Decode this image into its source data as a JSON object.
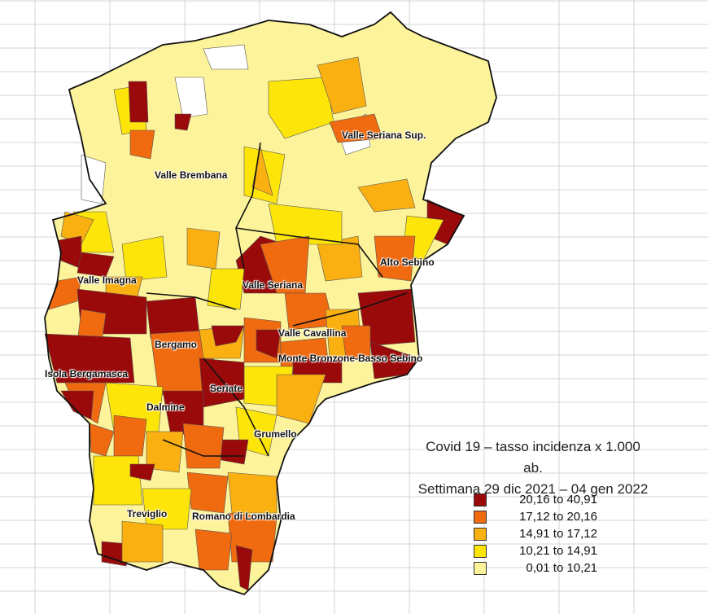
{
  "title": {
    "line1": "Covid 19 – tasso incidenza x 1.000",
    "line2": "ab.",
    "line3": "Settimana 29 dic 2021 – 04 gen 2022"
  },
  "legend": [
    {
      "label": "20,16 to 40,91",
      "color": "#9b0a0a"
    },
    {
      "label": "17,12 to 20,16",
      "color": "#f06a10"
    },
    {
      "label": "14,91 to 17,12",
      "color": "#fbb012"
    },
    {
      "label": "10,21 to 14,91",
      "color": "#fde50a"
    },
    {
      "label": "0,01 to 10,21",
      "color": "#fdf39a"
    }
  ],
  "districts": [
    "Valle Seriana Sup.",
    "Valle Brembana",
    "Alto Sebino",
    "Valle Imagna",
    "Valle Seriana",
    "Valle Cavallina",
    "Bergamo",
    "Monte Bronzone-Basso Sebino",
    "Isola Bergamasca",
    "Seriate",
    "Dalmine",
    "Grumello",
    "Treviglio",
    "Romano di Lombardia"
  ],
  "no_data_color": "#ffffff"
}
